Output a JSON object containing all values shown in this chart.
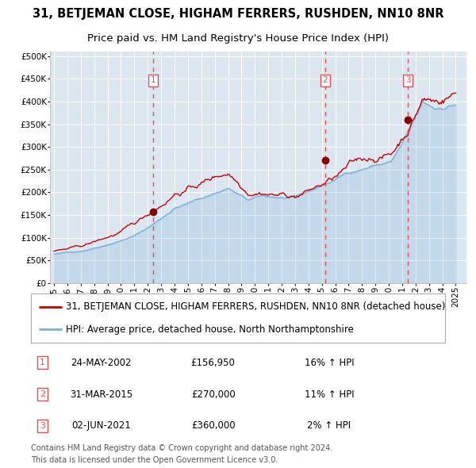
{
  "title": "31, BETJEMAN CLOSE, HIGHAM FERRERS, RUSHDEN, NN10 8NR",
  "subtitle": "Price paid vs. HM Land Registry's House Price Index (HPI)",
  "legend_line1": "31, BETJEMAN CLOSE, HIGHAM FERRERS, RUSHDEN, NN10 8NR (detached house)",
  "legend_line2": "HPI: Average price, detached house, North Northamptonshire",
  "footnote1": "Contains HM Land Registry data © Crown copyright and database right 2024.",
  "footnote2": "This data is licensed under the Open Government Licence v3.0.",
  "transactions": [
    {
      "label": "1",
      "date": "24-MAY-2002",
      "price": 156950,
      "hpi_pct": "16%",
      "direction": "↑"
    },
    {
      "label": "2",
      "date": "31-MAR-2015",
      "price": 270000,
      "hpi_pct": "11%",
      "direction": "↑"
    },
    {
      "label": "3",
      "date": "02-JUN-2021",
      "price": 360000,
      "hpi_pct": "2%",
      "direction": "↑"
    }
  ],
  "transaction_dates_num": [
    2002.39,
    2015.25,
    2021.42
  ],
  "transaction_prices": [
    156950,
    270000,
    360000
  ],
  "ylim": [
    0,
    510000
  ],
  "yticks": [
    0,
    50000,
    100000,
    150000,
    200000,
    250000,
    300000,
    350000,
    400000,
    450000,
    500000
  ],
  "red_line_color": "#cc0000",
  "blue_line_color": "#7bafd4",
  "plot_bg_color": "#dce6f1",
  "grid_color": "#ffffff",
  "dashed_line_color": "#e05050",
  "marker_color": "#880000",
  "title_fontsize": 10.5,
  "subtitle_fontsize": 9.5,
  "tick_fontsize": 7.5,
  "legend_fontsize": 8.5,
  "table_fontsize": 8.5,
  "footnote_fontsize": 7.0,
  "xlim_left": 1994.7,
  "xlim_right": 2025.8,
  "xticks": [
    1995,
    1996,
    1997,
    1998,
    1999,
    2000,
    2001,
    2002,
    2003,
    2004,
    2005,
    2006,
    2007,
    2008,
    2009,
    2010,
    2011,
    2012,
    2013,
    2014,
    2015,
    2016,
    2017,
    2018,
    2019,
    2020,
    2021,
    2022,
    2023,
    2024,
    2025
  ]
}
